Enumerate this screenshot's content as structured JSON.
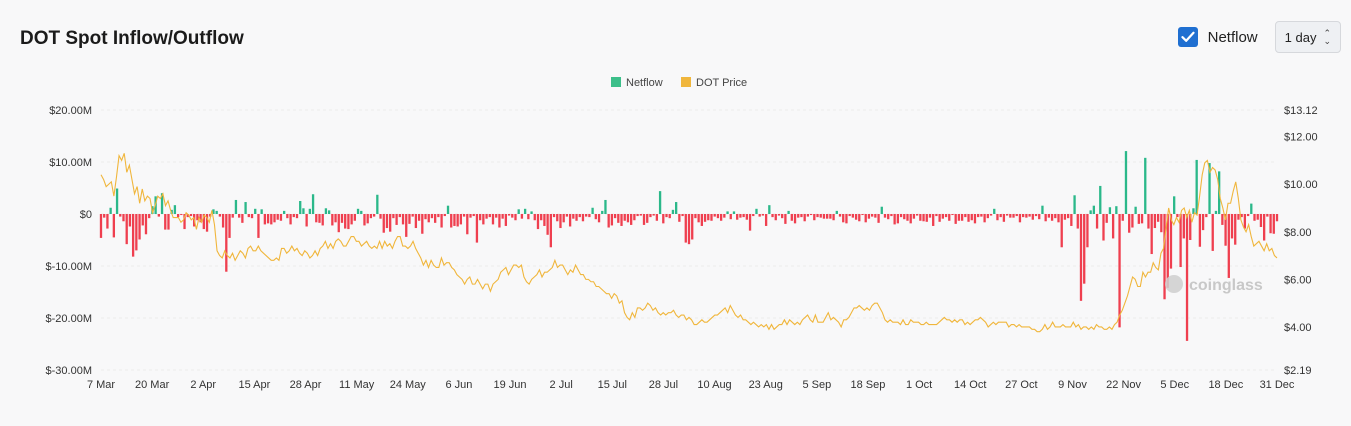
{
  "title": "DOT Spot Inflow/Outflow",
  "netflow_toggle": {
    "label": "Netflow",
    "checked": true
  },
  "period_select": {
    "value": "1 day"
  },
  "watermark": "coinglass",
  "colors": {
    "inflow": "#2bb88a",
    "outflow": "#ef3f4f",
    "price": "#f0b63c",
    "accent": "#1f6fd1",
    "grid": "#ececec"
  },
  "chart_data": {
    "type": "bar",
    "title": "DOT Spot Inflow/Outflow",
    "legend": [
      {
        "name": "Netflow",
        "color": "#3cbf8a"
      },
      {
        "name": "DOT Price",
        "color": "#f0b63c"
      }
    ],
    "legend_position": "top-center",
    "grid": true,
    "x_tick_labels": [
      "7 Mar",
      "20 Mar",
      "2 Apr",
      "15 Apr",
      "28 Apr",
      "11 May",
      "24 May",
      "6 Jun",
      "19 Jun",
      "2 Jul",
      "15 Jul",
      "28 Jul",
      "10 Aug",
      "23 Aug",
      "5 Sep",
      "18 Sep",
      "1 Oct",
      "14 Oct",
      "27 Oct",
      "9 Nov",
      "22 Nov",
      "5 Dec",
      "18 Dec",
      "31 Dec"
    ],
    "y_left": {
      "unit": "USD",
      "ylim": [
        -30000000,
        20000000
      ],
      "tick_labels": [
        "$20.00M",
        "$10.00M",
        "$0",
        "$-10.00M",
        "$-20.00M",
        "$-30.00M"
      ],
      "tick_values": [
        20000000,
        10000000,
        0,
        -10000000,
        -20000000,
        -30000000
      ]
    },
    "y_right": {
      "unit": "USD",
      "ylim": [
        2.19,
        13.12
      ],
      "tick_labels": [
        "$13.12",
        "$12.00",
        "$10.00",
        "$8.00",
        "$6.00",
        "$4.00",
        "$2.19"
      ],
      "tick_values": [
        13.12,
        12,
        10,
        8,
        6,
        4,
        2.19
      ]
    },
    "series": [
      {
        "name": "Netflow",
        "type": "bar",
        "unit": "USD millions",
        "start_date": "7 Mar",
        "values": [
          -4.6,
          -0.7,
          -2.8,
          1.2,
          -4.5,
          4.9,
          -0.5,
          -1.4,
          -5.8,
          -2.4,
          -8.2,
          -7.0,
          -4.9,
          -2.2,
          -3.9,
          -0.8,
          1.5,
          3.4,
          -0.5,
          4.0,
          -3.0,
          -3.0,
          0.8,
          1.7,
          -0.6,
          -0.2,
          -2.9,
          -0.6,
          -0.4,
          -2.4,
          -1.2,
          -1.6,
          -2.9,
          -3.4,
          -0.5,
          0.9,
          0.6,
          -0.5,
          -2.6,
          -11.1,
          -4.6,
          -0.7,
          2.7,
          -0.7,
          -1.7,
          2.3,
          -0.6,
          -0.8,
          1.0,
          -4.6,
          0.9,
          -2.0,
          -1.8,
          -2.0,
          -1.6,
          -1.1,
          -1.3,
          0.6,
          -0.8,
          -2.0,
          -0.6,
          -0.8,
          2.5,
          1.1,
          -2.4,
          1.0,
          3.8,
          -1.6,
          -1.7,
          -2.2,
          1.1,
          0.7,
          -2.2,
          -1.6,
          -3.5,
          -1.7,
          -2.8,
          -2.9,
          -2.0,
          -1.3,
          1.0,
          0.6,
          -2.2,
          -1.8,
          -0.8,
          -0.5,
          3.7,
          -0.9,
          -3.6,
          -2.7,
          -3.4,
          -0.8,
          -2.1,
          -0.6,
          -2.0,
          -4.4,
          -1.9,
          -0.5,
          -2.7,
          -1.3,
          -3.8,
          -1.0,
          -1.6,
          -0.8,
          -1.7,
          -0.6,
          -2.6,
          -0.4,
          1.6,
          -2.6,
          -2.3,
          -2.4,
          -2.0,
          -0.5,
          -3.9,
          -0.7,
          -0.4,
          -5.5,
          -1.2,
          -2.0,
          -0.9,
          -0.6,
          -2.0,
          -0.7,
          -2.6,
          -0.9,
          -2.3,
          -0.3,
          -0.7,
          -1.2,
          0.9,
          -0.9,
          1.0,
          -1.0,
          0.5,
          -1.2,
          -2.9,
          -1.2,
          -2.3,
          -4.0,
          -6.4,
          -0.6,
          -1.4,
          -2.7,
          -1.6,
          -0.5,
          -2.4,
          -0.9,
          -1.3,
          -0.6,
          -1.4,
          -0.5,
          -0.6,
          1.2,
          -1.0,
          -1.6,
          0.6,
          2.7,
          -2.6,
          -2.2,
          -0.8,
          -1.7,
          -2.3,
          -1.3,
          -1.6,
          -2.1,
          -1.2,
          -0.4,
          -0.3,
          -2.1,
          -1.7,
          -0.6,
          -0.3,
          -1.3,
          4.4,
          -1.8,
          -0.6,
          -0.8,
          0.8,
          2.3,
          -1.5,
          -0.4,
          -5.5,
          -5.8,
          -4.9,
          -0.8,
          -1.6,
          -2.3,
          -1.5,
          -1.2,
          -1.3,
          -0.5,
          -0.8,
          -1.3,
          -0.7,
          0.5,
          -1.0,
          0.5,
          -1.1,
          -0.7,
          -0.6,
          -1.1,
          -3.2,
          -0.4,
          1.0,
          -0.5,
          -0.3,
          -2.3,
          1.7,
          -0.6,
          -1.2,
          -0.3,
          -0.8,
          -1.9,
          0.6,
          -1.3,
          -1.8,
          -0.7,
          -0.6,
          -1.4,
          -0.5,
          -0.2,
          -1.2,
          -0.6,
          -0.7,
          -0.9,
          -0.9,
          -0.9,
          -1.2,
          0.6,
          -0.5,
          -1.6,
          -1.8,
          -0.4,
          -0.7,
          -1.1,
          -1.4,
          -0.2,
          -1.6,
          -0.9,
          -0.5,
          -0.7,
          -1.7,
          1.4,
          -0.7,
          -1.0,
          -0.4,
          -2.0,
          -1.8,
          -0.6,
          -1.0,
          -1.3,
          -1.8,
          -0.9,
          -0.3,
          -1.3,
          -1.4,
          -1.5,
          -0.7,
          -2.3,
          -0.4,
          -1.5,
          -0.9,
          -0.6,
          -1.3,
          -0.2,
          -1.9,
          -1.3,
          -1.3,
          -0.6,
          -1.5,
          -1.2,
          -1.8,
          -0.6,
          -0.5,
          -1.6,
          -0.8,
          -0.3,
          1.0,
          -1.2,
          -0.6,
          -1.5,
          -0.3,
          -0.7,
          -0.7,
          -0.4,
          -1.6,
          -0.6,
          -0.7,
          -0.5,
          -1.1,
          -0.4,
          -1.0,
          1.6,
          -1.4,
          -0.7,
          -1.3,
          -0.8,
          -1.6,
          -6.4,
          -1.1,
          -0.8,
          -2.3,
          3.6,
          -2.8,
          -16.7,
          -13.4,
          -6.4,
          0.7,
          1.6,
          -2.8,
          5.4,
          -5.1,
          -1.7,
          1.3,
          -4.7,
          1.5,
          -21.8,
          -1.3,
          12.1,
          -3.6,
          -2.6,
          1.4,
          -1.9,
          -1.8,
          10.8,
          -2.8,
          -7.7,
          -2.7,
          -1.5,
          -3.5,
          -16.4,
          -14.2,
          -10.5,
          3.4,
          -0.6,
          -10.2,
          -4.7,
          -24.4,
          -5.0,
          1.1,
          10.4,
          -6.3,
          -3.1,
          -0.6,
          9.8,
          -7.1,
          0.6,
          8.2,
          -2.1,
          -6.1,
          -12.3,
          -4.7,
          -5.9,
          -1.1,
          -0.6,
          -2.8,
          -0.4,
          2.0,
          -1.3,
          -1.1,
          -2.5,
          -5.1,
          -0.5,
          -3.7,
          -3.8,
          -1.4
        ]
      },
      {
        "name": "DOT Price",
        "type": "line",
        "unit": "USD",
        "start_date": "7 Mar",
        "values": [
          10.4,
          10.2,
          9.9,
          10.0,
          10.1,
          9.5,
          10.3,
          11.2,
          11.0,
          11.3,
          10.5,
          10.8,
          10.2,
          9.6,
          9.9,
          9.2,
          9.8,
          9.3,
          9.5,
          9.4,
          8.8,
          9.1,
          9.5,
          9.4,
          9.6,
          9.1,
          9.3,
          8.9,
          8.6,
          8.6,
          8.6,
          8.4,
          8.5,
          8.8,
          8.7,
          8.5,
          8.6,
          8.1,
          8.6,
          8.4,
          8.7,
          8.6,
          8.4,
          8.9,
          8.3,
          7.2,
          7.0,
          6.9,
          7.2,
          7.0,
          6.9,
          7.1,
          6.8,
          7.0,
          7.2,
          7.1,
          6.9,
          7.3,
          7.4,
          7.2,
          7.2,
          7.4,
          7.2,
          7.1,
          7.0,
          6.9,
          6.8,
          6.8,
          6.9,
          6.8,
          7.3,
          7.3,
          7.1,
          7.2,
          7.4,
          7.2,
          7.3,
          7.1,
          7.0,
          7.2,
          7.1,
          6.9,
          7.0,
          7.2,
          7.0,
          7.3,
          7.4,
          7.6,
          7.3,
          7.5,
          7.3,
          7.6,
          7.7,
          7.6,
          7.4,
          7.4,
          7.6,
          7.8,
          7.8,
          7.6,
          7.6,
          7.4,
          7.5,
          7.6,
          7.4,
          7.3,
          7.4,
          7.3,
          7.6,
          7.3,
          7.6,
          7.4,
          7.5,
          7.3,
          7.6,
          7.8,
          7.8,
          7.4,
          7.4,
          7.3,
          7.4,
          7.6,
          7.3,
          7.1,
          6.9,
          6.6,
          6.8,
          6.5,
          6.8,
          6.6,
          6.5,
          6.5,
          6.9,
          6.6,
          6.7,
          6.7,
          6.5,
          6.4,
          6.2,
          6.1,
          6.0,
          5.8,
          6.0,
          6.1,
          5.8,
          5.8,
          6.0,
          5.8,
          5.6,
          5.8,
          5.8,
          5.5,
          5.8,
          5.9,
          6.0,
          6.3,
          6.4,
          6.5,
          6.2,
          6.4,
          6.6,
          6.6,
          6.5,
          6.6,
          6.1,
          5.9,
          5.8,
          6.0,
          6.1,
          6.2,
          6.4,
          6.1,
          6.3,
          6.3,
          6.4,
          6.5,
          6.8,
          6.5,
          6.6,
          6.6,
          6.4,
          6.2,
          6.4,
          6.3,
          6.6,
          6.4,
          6.2,
          6.2,
          6.0,
          6.0,
          5.9,
          5.9,
          5.7,
          5.7,
          5.6,
          5.5,
          5.4,
          5.4,
          5.2,
          5.4,
          5.3,
          5.0,
          5.1,
          4.6,
          4.4,
          4.3,
          4.6,
          4.4,
          4.8,
          4.8,
          4.7,
          4.8,
          5.0,
          4.9,
          4.7,
          4.8,
          4.6,
          4.5,
          4.6,
          4.5,
          4.6,
          4.6,
          4.7,
          4.5,
          4.4,
          4.5,
          4.5,
          4.3,
          4.4,
          4.3,
          4.1,
          4.1,
          4.2,
          4.3,
          4.2,
          4.2,
          4.3,
          4.4,
          4.5,
          4.5,
          4.6,
          4.7,
          4.8,
          4.6,
          4.9,
          4.7,
          4.5,
          4.4,
          4.5,
          4.3,
          4.3,
          4.2,
          4.1,
          4.2,
          4.1,
          4.0,
          4.1,
          4.0,
          4.1,
          3.9,
          4.1,
          3.9,
          4.0,
          4.1,
          4.1,
          4.3,
          4.1,
          4.3,
          4.2,
          4.1,
          4.2,
          4.1,
          4.3,
          4.4,
          4.5,
          4.3,
          4.2,
          4.5,
          4.2,
          4.2,
          4.2,
          4.4,
          4.6,
          4.3,
          4.4,
          4.3,
          4.2,
          4.0,
          4.3,
          4.3,
          4.4,
          4.6,
          4.8,
          4.8,
          4.9,
          4.8,
          4.7,
          4.8,
          4.7,
          4.9,
          5.0,
          5.0,
          4.8,
          4.6,
          4.3,
          4.2,
          4.3,
          4.2,
          4.2,
          4.2,
          4.1,
          4.3,
          4.1,
          4.1,
          4.3,
          4.2,
          4.2,
          4.2,
          4.1,
          4.1,
          4.2,
          4.1,
          4.1,
          4.1,
          4.1,
          4.2,
          4.3,
          4.4,
          4.3,
          4.3,
          4.2,
          4.3,
          4.2,
          4.3,
          4.3,
          4.1,
          4.2,
          4.1,
          4.2,
          4.3,
          4.3,
          4.4,
          4.3,
          4.2,
          4.0,
          4.1,
          4.2,
          4.1,
          4.2,
          4.2,
          4.2,
          4.2,
          4.0,
          4.1,
          4.1,
          4.0,
          4.1,
          4.0,
          4.0,
          4.0,
          4.0,
          3.9,
          3.9,
          3.8,
          3.8,
          3.9,
          4.1,
          3.9,
          4.0,
          4.2,
          4.0,
          4.0,
          4.0,
          4.1,
          4.0,
          4.0,
          4.0,
          4.2,
          4.0,
          4.1,
          3.9,
          4.0,
          4.0,
          3.9,
          4.0,
          3.9,
          4.1,
          4.0,
          4.0,
          3.9,
          3.9,
          4.0,
          3.9,
          4.1,
          4.2,
          4.5,
          4.7,
          5.0,
          5.3,
          5.7,
          6.1,
          6.0,
          5.7,
          5.7,
          6.3,
          6.1,
          6.3,
          6.3,
          6.7,
          6.5,
          6.4,
          7.1,
          7.3,
          8.2,
          9.0,
          8.5,
          8.3,
          8.6,
          8.4,
          8.9,
          9.0,
          8.6,
          8.9,
          8.4,
          8.8,
          8.7,
          9.5,
          10.4,
          10.9,
          11.0,
          10.5,
          10.7,
          10.6,
          10.2,
          9.4,
          9.0,
          8.5,
          9.2,
          9.2,
          9.7,
          10.1,
          9.4,
          8.5,
          8.2,
          8.0,
          8.3,
          7.8,
          7.4,
          7.5,
          7.6,
          7.4,
          7.2,
          7.5,
          7.2,
          7.3,
          7.0,
          6.9
        ]
      }
    ]
  }
}
